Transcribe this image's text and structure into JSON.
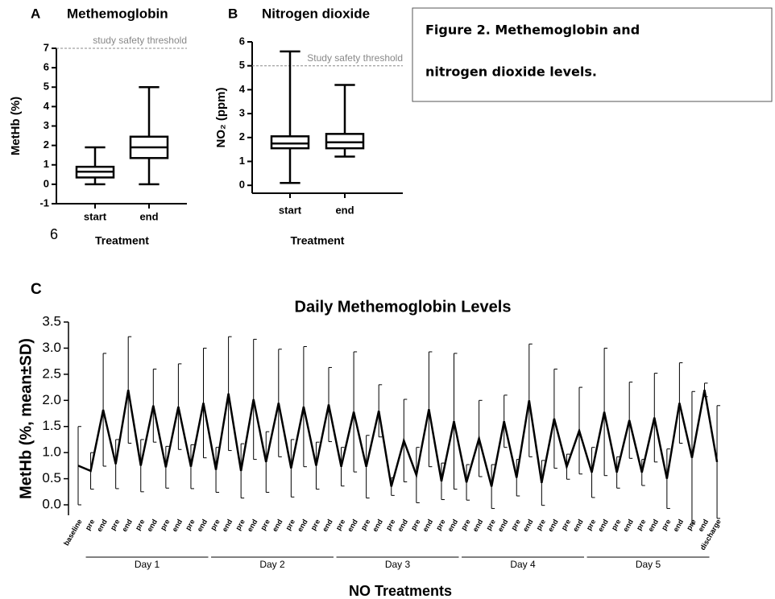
{
  "caption": [
    "Figure 2. Methemoglobin and",
    "nitrogen dioxide levels."
  ],
  "page_number": "6",
  "chart_data": [
    {
      "type": "box",
      "panel": "A",
      "title": "Methemoglobin",
      "y_label": "MetHb (%)",
      "x_label": "Treatment",
      "categories": [
        "start",
        "end"
      ],
      "boxes": [
        {
          "min": 0,
          "q1": 0.35,
          "median": 0.65,
          "q3": 0.9,
          "max": 1.9
        },
        {
          "min": 0,
          "q1": 1.35,
          "median": 1.9,
          "q3": 2.45,
          "max": 5
        }
      ],
      "ylim": [
        -1,
        7
      ],
      "yticks": [
        -1,
        0,
        1,
        2,
        3,
        4,
        5,
        6,
        7
      ],
      "threshold": {
        "value": 7,
        "label": "study safety threshold"
      }
    },
    {
      "type": "box",
      "panel": "B",
      "title": "Nitrogen dioxide",
      "y_label": "NO₂ (ppm)",
      "x_label": "Treatment",
      "categories": [
        "start",
        "end"
      ],
      "boxes": [
        {
          "min": 0.1,
          "q1": 1.55,
          "median": 1.75,
          "q3": 2.05,
          "max": 5.6
        },
        {
          "min": 1.2,
          "q1": 1.55,
          "median": 1.8,
          "q3": 2.15,
          "max": 4.2
        }
      ],
      "ylim": [
        -0.33,
        6
      ],
      "yticks": [
        0,
        1,
        2,
        3,
        4,
        5,
        6
      ],
      "threshold": {
        "value": 5,
        "label": "Study safety threshold"
      }
    },
    {
      "type": "line",
      "panel": "C",
      "title": "Daily Methemoglobin Levels",
      "y_label": "MetHb (%, mean±SD)",
      "x_label": "NO Treatments",
      "categories": [
        "baseline",
        "pre",
        "end",
        "pre",
        "end",
        "pre",
        "end",
        "pre",
        "end",
        "pre",
        "end",
        "pre",
        "end",
        "pre",
        "end",
        "pre",
        "end",
        "pre",
        "end",
        "pre",
        "end",
        "pre",
        "end",
        "pre",
        "end",
        "pre",
        "end",
        "pre",
        "end",
        "pre",
        "end",
        "pre",
        "end",
        "pre",
        "end",
        "pre",
        "end",
        "pre",
        "end",
        "pre",
        "end",
        "pre",
        "end",
        "pre",
        "end",
        "pre",
        "end",
        "pre",
        "end",
        "pre",
        "end",
        "discharge"
      ],
      "values": [
        0.75,
        0.65,
        1.82,
        0.78,
        2.2,
        0.75,
        1.9,
        0.72,
        1.88,
        0.73,
        1.95,
        0.67,
        2.13,
        0.65,
        2.02,
        0.82,
        1.95,
        0.7,
        1.88,
        0.75,
        1.92,
        0.73,
        1.78,
        0.73,
        1.8,
        0.35,
        1.23,
        0.57,
        1.83,
        0.45,
        1.6,
        0.43,
        1.27,
        0.35,
        1.6,
        0.52,
        2.0,
        0.42,
        1.65,
        0.73,
        1.42,
        0.62,
        1.78,
        0.62,
        1.62,
        0.62,
        1.67,
        0.5,
        1.95,
        0.9,
        2.2,
        0.82
      ],
      "errors": [
        0.75,
        0.35,
        1.08,
        0.47,
        1.02,
        0.5,
        0.7,
        0.4,
        0.82,
        0.42,
        1.05,
        0.43,
        1.09,
        0.52,
        1.15,
        0.58,
        1.03,
        0.55,
        1.15,
        0.45,
        0.71,
        0.37,
        1.15,
        0.6,
        0.5,
        0.17,
        0.79,
        0.53,
        1.1,
        0.35,
        1.3,
        0.34,
        0.73,
        0.42,
        0.5,
        0.35,
        1.08,
        0.43,
        0.95,
        0.24,
        0.83,
        0.48,
        1.22,
        0.3,
        0.73,
        0.25,
        0.85,
        0.57,
        0.77,
        1.27,
        0.13,
        1.08
      ],
      "groups": [
        {
          "label": "Day 1",
          "start": 1,
          "end": 10
        },
        {
          "label": "Day 2",
          "start": 11,
          "end": 20
        },
        {
          "label": "Day 3",
          "start": 21,
          "end": 30
        },
        {
          "label": "Day 4",
          "start": 31,
          "end": 40
        },
        {
          "label": "Day 5",
          "start": 41,
          "end": 50
        }
      ],
      "color": "#000000",
      "ylim": [
        -0.2,
        3.5
      ],
      "yticks": [
        {
          "value": 0,
          "label": "0.0"
        },
        {
          "value": 0.5,
          "label": "0.5"
        },
        {
          "value": 1,
          "label": "1.0"
        },
        {
          "value": 1.5,
          "label": "1.5"
        },
        {
          "value": 2,
          "label": "2.0"
        },
        {
          "value": 2.5,
          "label": "2.5"
        },
        {
          "value": 3,
          "label": "3.0"
        },
        {
          "value": 3.5,
          "label": "3.5"
        }
      ]
    }
  ]
}
